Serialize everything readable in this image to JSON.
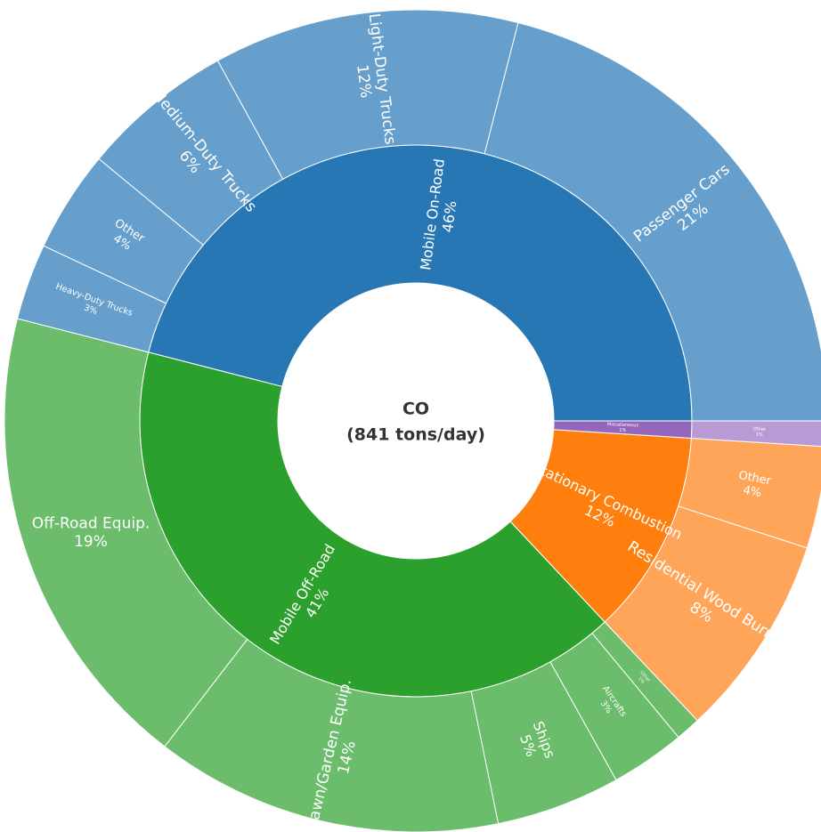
{
  "chart_data": {
    "type": "sunburst",
    "title": "CO",
    "subtitle": "(841 tons/day)",
    "series": [
      {
        "name": "Mobile On-Road",
        "color": "#2777b4",
        "value": 46,
        "value_label": "46%",
        "children": {
          "color": "#669fcc",
          "categories": [
            "Passenger Cars",
            "Light-Duty Trucks",
            "Medium-Duty Trucks",
            "Other",
            "Heavy-Duty Trucks"
          ],
          "values": [
            21,
            12,
            6,
            4,
            3
          ],
          "value_labels": [
            "21%",
            "12%",
            "6%",
            "4%",
            "3%"
          ]
        }
      },
      {
        "name": "Mobile Off-Road",
        "color": "#2ca02c",
        "value": 41,
        "value_label": "41%",
        "children": {
          "color": "#6bbc6b",
          "categories": [
            "Off-Road Equip.",
            "Lawn/Garden Equip.",
            "Ships",
            "Aircrafts",
            "Other"
          ],
          "values": [
            19,
            14,
            5,
            3,
            1
          ],
          "value_labels": [
            "19%",
            "14%",
            "5%",
            "3%",
            "1%"
          ]
        }
      },
      {
        "name": "Stationary Combustion",
        "color": "#ff7f0e",
        "value": 12,
        "value_label": "12%",
        "children": {
          "color": "#ffa55a",
          "categories": [
            "Residential Wood Burning",
            "Other"
          ],
          "values": [
            8,
            4
          ],
          "value_labels": [
            "8%",
            "4%"
          ]
        }
      },
      {
        "name": "Miscellaneous",
        "color": "#9467bd",
        "value": 1,
        "value_label": "1%",
        "children": {
          "color": "#b99ad4",
          "categories": [
            "Other"
          ],
          "values": [
            1
          ],
          "value_labels": [
            "1%"
          ]
        }
      }
    ]
  }
}
